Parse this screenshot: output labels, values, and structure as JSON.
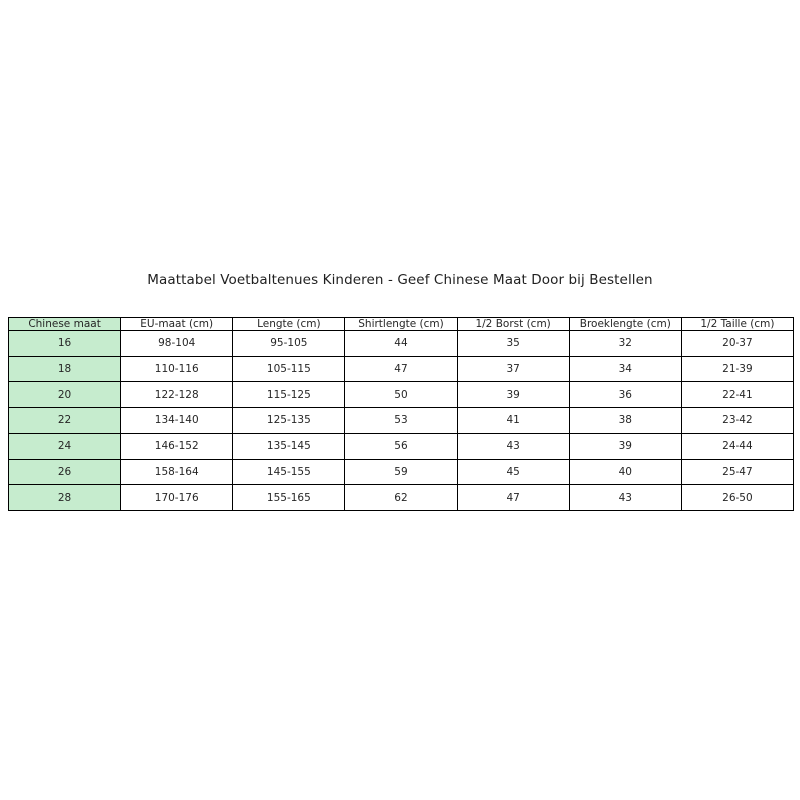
{
  "colors": {
    "highlight_green": "#c6ecce",
    "border": "#000000",
    "text": "#262626",
    "background": "#ffffff"
  },
  "chart_data": {
    "type": "table",
    "title": "Maattabel Voetbaltenues Kinderen - Geef Chinese Maat Door bij Bestellen",
    "columns": [
      "Chinese maat",
      "EU-maat (cm)",
      "Lengte (cm)",
      "Shirtlengte (cm)",
      "1/2 Borst (cm)",
      "Broeklengte (cm)",
      "1/2 Taille (cm)"
    ],
    "rows": [
      [
        "16",
        "98-104",
        "95-105",
        "44",
        "35",
        "32",
        "20-37"
      ],
      [
        "18",
        "110-116",
        "105-115",
        "47",
        "37",
        "34",
        "21-39"
      ],
      [
        "20",
        "122-128",
        "115-125",
        "50",
        "39",
        "36",
        "22-41"
      ],
      [
        "22",
        "134-140",
        "125-135",
        "53",
        "41",
        "38",
        "23-42"
      ],
      [
        "24",
        "146-152",
        "135-145",
        "56",
        "43",
        "39",
        "24-44"
      ],
      [
        "26",
        "158-164",
        "145-155",
        "59",
        "45",
        "40",
        "25-47"
      ],
      [
        "28",
        "170-176",
        "155-165",
        "62",
        "47",
        "43",
        "26-50"
      ]
    ],
    "layout_hints": {
      "first_column_highlighted": true,
      "grid": true,
      "all_text_centered": true
    }
  }
}
